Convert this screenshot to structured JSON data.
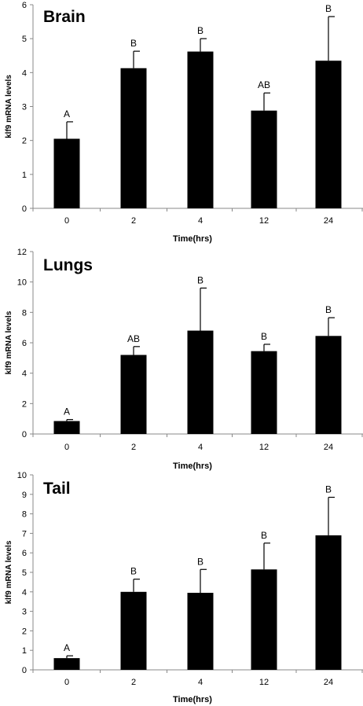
{
  "chart_data": [
    {
      "type": "bar",
      "title": "Brain",
      "xlabel": "Time(hrs)",
      "ylabel": "klf9 mRNA levels",
      "categories": [
        "0",
        "2",
        "4",
        "12",
        "24"
      ],
      "values": [
        2.05,
        4.13,
        4.62,
        2.88,
        4.35
      ],
      "error": [
        0.5,
        0.5,
        0.38,
        0.52,
        1.3
      ],
      "letters": [
        "A",
        "B",
        "B",
        "AB",
        "B"
      ],
      "ylim": [
        0,
        6
      ],
      "yticks": [
        0,
        1,
        2,
        3,
        4,
        5,
        6
      ],
      "color": "#000000"
    },
    {
      "type": "bar",
      "title": "Lungs",
      "xlabel": "Time(hrs)",
      "ylabel": "klf9 mRNA levels",
      "categories": [
        "0",
        "2",
        "4",
        "12",
        "24"
      ],
      "values": [
        0.85,
        5.2,
        6.8,
        5.45,
        6.45
      ],
      "error": [
        0.1,
        0.55,
        2.8,
        0.45,
        1.2
      ],
      "letters": [
        "A",
        "AB",
        "B",
        "B",
        "B"
      ],
      "ylim": [
        0,
        12
      ],
      "yticks": [
        0,
        2,
        4,
        6,
        8,
        10,
        12
      ],
      "color": "#000000"
    },
    {
      "type": "bar",
      "title": "Tail",
      "xlabel": "Time(hrs)",
      "ylabel": "klf9 mRNA levels",
      "categories": [
        "0",
        "2",
        "4",
        "12",
        "24"
      ],
      "values": [
        0.6,
        4.0,
        3.95,
        5.15,
        6.9
      ],
      "error": [
        0.12,
        0.65,
        1.2,
        1.35,
        1.95
      ],
      "letters": [
        "A",
        "B",
        "B",
        "B",
        "B"
      ],
      "ylim": [
        0,
        10
      ],
      "yticks": [
        0,
        1,
        2,
        3,
        4,
        5,
        6,
        7,
        8,
        9,
        10
      ],
      "color": "#000000"
    }
  ]
}
